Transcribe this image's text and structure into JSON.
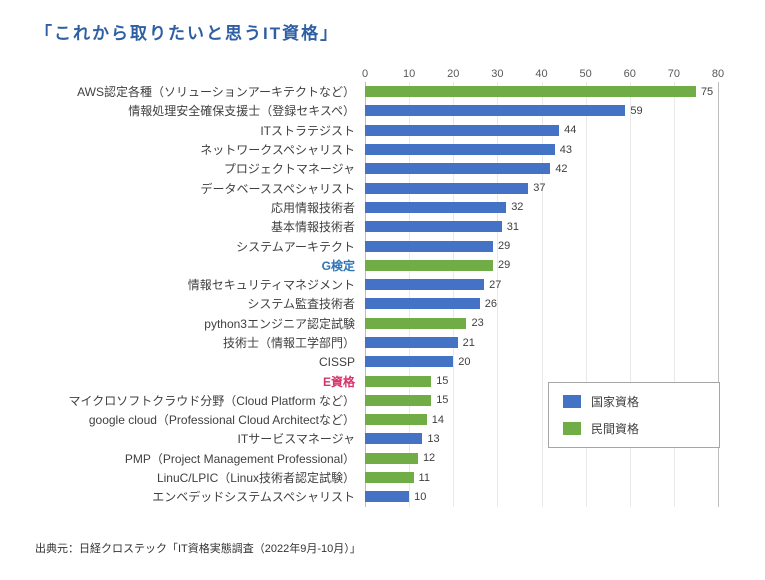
{
  "title": "「これから取りたいと思うIT資格」",
  "source": "出典元：日経クロステック「IT資格実態調査（2022年9月-10月）」",
  "colors": {
    "national": "#4472c4",
    "private": "#70ad47",
    "title": "#2e5fa3"
  },
  "legend": {
    "items": [
      {
        "label": "国家資格",
        "color": "#4472c4"
      },
      {
        "label": "民間資格",
        "color": "#70ad47"
      }
    ]
  },
  "chart_data": {
    "type": "bar",
    "orientation": "horizontal",
    "title": "「これから取りたいと思うIT資格」",
    "xlim": [
      0,
      80
    ],
    "ticks": [
      0,
      10,
      20,
      30,
      40,
      50,
      60,
      70,
      80
    ],
    "grid": true,
    "legend_position": "lower-right",
    "bars": [
      {
        "label": "AWS認定各種（ソリューションアーキテクトなど）",
        "value": 75,
        "group": "private"
      },
      {
        "label": "情報処理安全確保支援士（登録セキスペ）",
        "value": 59,
        "group": "national"
      },
      {
        "label": "ITストラテジスト",
        "value": 44,
        "group": "national"
      },
      {
        "label": "ネットワークスペシャリスト",
        "value": 43,
        "group": "national"
      },
      {
        "label": "プロジェクトマネージャ",
        "value": 42,
        "group": "national"
      },
      {
        "label": "データベーススペシャリスト",
        "value": 37,
        "group": "national"
      },
      {
        "label": "応用情報技術者",
        "value": 32,
        "group": "national"
      },
      {
        "label": "基本情報技術者",
        "value": 31,
        "group": "national"
      },
      {
        "label": "システムアーキテクト",
        "value": 29,
        "group": "national"
      },
      {
        "label": "G検定",
        "value": 29,
        "group": "private",
        "label_color": "#2e75b6"
      },
      {
        "label": "情報セキュリティマネジメント",
        "value": 27,
        "group": "national"
      },
      {
        "label": "システム監査技術者",
        "value": 26,
        "group": "national"
      },
      {
        "label": "python3エンジニア認定試験",
        "value": 23,
        "group": "private"
      },
      {
        "label": "技術士（情報工学部門）",
        "value": 21,
        "group": "national"
      },
      {
        "label": "CISSP",
        "value": 20,
        "group": "national"
      },
      {
        "label": "E資格",
        "value": 15,
        "group": "private",
        "label_color": "#d6336c"
      },
      {
        "label": "マイクロソフトクラウド分野（Cloud Platform など）",
        "value": 15,
        "group": "private"
      },
      {
        "label": "google cloud（Professional Cloud Architectなど）",
        "value": 14,
        "group": "private"
      },
      {
        "label": "ITサービスマネージャ",
        "value": 13,
        "group": "national"
      },
      {
        "label": "PMP（Project Management Professional）",
        "value": 12,
        "group": "private"
      },
      {
        "label": "LinuC/LPIC（Linux技術者認定試験）",
        "value": 11,
        "group": "private"
      },
      {
        "label": "エンベデッドシステムスペシャリスト",
        "value": 10,
        "group": "national"
      }
    ]
  }
}
